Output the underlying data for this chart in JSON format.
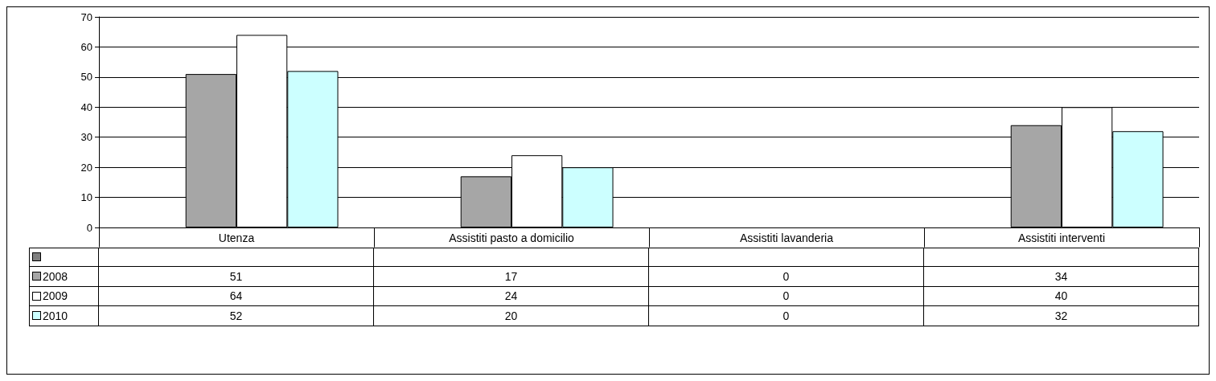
{
  "chart_data": {
    "type": "bar",
    "categories": [
      "Utenza",
      "Assistiti pasto a domicilio",
      "Assistiti lavanderia",
      "Assistiti interventi"
    ],
    "series": [
      {
        "color": "#808080",
        "values": [
          null,
          null,
          null,
          null
        ]
      },
      {
        "name": "2008",
        "color": "#a6a6a6",
        "values": [
          51,
          17,
          0,
          34
        ]
      },
      {
        "name": "2009",
        "color": "#ffffff",
        "values": [
          64,
          24,
          0,
          40
        ]
      },
      {
        "name": "2010",
        "color": "#ccffff",
        "values": [
          52,
          20,
          0,
          32
        ]
      }
    ],
    "ylim": [
      0,
      70
    ],
    "yticks": [
      0,
      10,
      20,
      30,
      40,
      50,
      60,
      70
    ],
    "grid": "y",
    "legend": "bottom",
    "data_labels": true
  }
}
